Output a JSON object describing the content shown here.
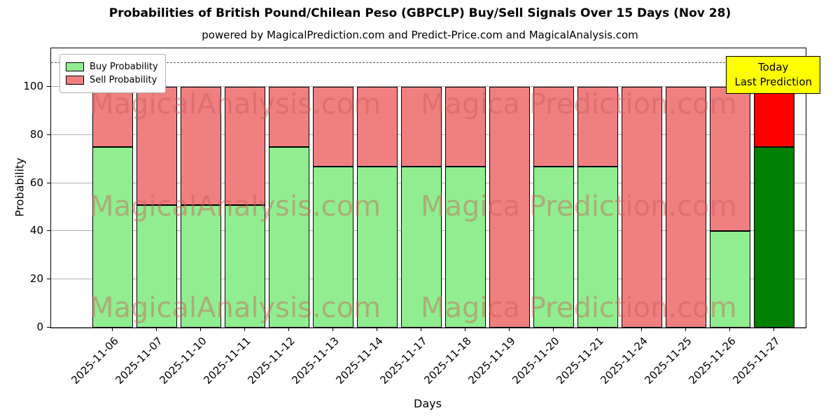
{
  "figure": {
    "subtitle": "powered by MagicalPrediction.com and Predict-Price.com and MagicalAnalysis.com"
  },
  "legend": {
    "items": [
      {
        "label": "Buy Probability",
        "color": "#90ee90"
      },
      {
        "label": "Sell Probability",
        "color": "#f08080"
      }
    ]
  },
  "annotation": {
    "lines": [
      "Today",
      "Last Prediction"
    ],
    "bg": "#ffff00"
  },
  "watermarks": {
    "left": "MagicalAnalysis.com",
    "right": "Magica Prediction.com",
    "color": "rgba(205,92,92,0.45)"
  },
  "chart_data": {
    "type": "bar",
    "stacked": true,
    "title": "Probabilities of British Pound/Chilean Peso (GBPCLP) Buy/Sell Signals Over 15 Days (Nov 28)",
    "xlabel": "Days",
    "ylabel": "Probability",
    "ylim": [
      0,
      116
    ],
    "yticks": [
      0,
      20,
      40,
      60,
      80,
      100
    ],
    "dashed_line_y": 110,
    "grid": true,
    "legend_position": "upper left",
    "categories": [
      "2025-11-06",
      "2025-11-07",
      "2025-11-10",
      "2025-11-11",
      "2025-11-12",
      "2025-11-13",
      "2025-11-14",
      "2025-11-17",
      "2025-11-18",
      "2025-11-19",
      "2025-11-20",
      "2025-11-21",
      "2025-11-24",
      "2025-11-25",
      "2025-11-26",
      "2025-11-27"
    ],
    "series": [
      {
        "name": "Buy Probability",
        "color": "#90ee90",
        "values": [
          75,
          51,
          51,
          51,
          75,
          67,
          67,
          67,
          67,
          0,
          67,
          67,
          0,
          0,
          40,
          75
        ]
      },
      {
        "name": "Sell Probability",
        "color": "#f08080",
        "values": [
          25,
          49,
          49,
          49,
          25,
          33,
          33,
          33,
          33,
          100,
          33,
          33,
          100,
          100,
          60,
          25
        ]
      }
    ],
    "today_index": 15,
    "today_colors": {
      "buy": "#008000",
      "sell": "#ff0000"
    },
    "bar_edge_color": "#000000"
  }
}
